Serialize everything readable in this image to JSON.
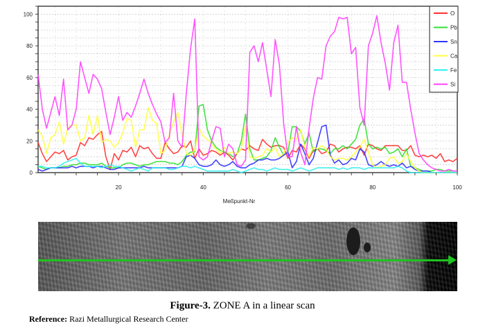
{
  "chart_data": {
    "type": "line",
    "title": "",
    "xlabel": "Meßpunkt-Nr",
    "ylabel": "",
    "xlim": [
      1,
      100
    ],
    "ylim": [
      0,
      105
    ],
    "xticks": [
      20,
      40,
      60,
      80,
      100
    ],
    "yticks": [
      0,
      20,
      40,
      60,
      80,
      100
    ],
    "grid": true,
    "legend_position": "top-right",
    "x_start": 1,
    "series": [
      {
        "name": "O",
        "color": "#ff3030",
        "values": [
          19,
          12,
          7,
          10,
          13,
          12,
          14,
          8,
          10,
          11,
          19,
          17,
          22,
          21,
          24,
          26,
          10,
          2,
          12,
          8,
          14,
          13,
          16,
          10,
          17,
          15,
          16,
          12,
          9,
          9,
          19,
          15,
          12,
          13,
          17,
          16,
          20,
          9,
          15,
          11,
          12,
          14,
          13,
          11,
          13,
          11,
          8,
          12,
          15,
          14,
          17,
          15,
          14,
          21,
          18,
          16,
          17,
          17,
          16,
          9,
          14,
          13,
          18,
          15,
          9,
          14,
          15,
          12,
          13,
          18,
          17,
          13,
          15,
          16,
          16,
          15,
          17,
          11,
          18,
          17,
          15,
          14,
          17,
          17,
          17,
          17,
          14,
          14,
          17,
          11,
          10,
          11,
          10,
          11,
          9,
          12,
          7,
          8,
          7,
          9
        ]
      },
      {
        "name": "Pb",
        "color": "#30e030",
        "values": [
          4,
          3,
          2,
          3,
          3,
          3,
          4,
          4,
          5,
          5,
          6,
          6,
          5,
          5,
          5,
          6,
          4,
          3,
          3,
          3,
          5,
          6,
          6,
          5,
          4,
          5,
          5,
          6,
          7,
          7,
          7,
          6,
          6,
          5,
          7,
          11,
          13,
          13,
          42,
          43,
          27,
          20,
          16,
          14,
          13,
          12,
          10,
          12,
          20,
          37,
          15,
          8,
          8,
          9,
          10,
          14,
          22,
          16,
          11,
          13,
          29,
          29,
          26,
          18,
          25,
          13,
          15,
          15,
          14,
          12,
          15,
          15,
          17,
          15,
          18,
          21,
          30,
          34,
          18,
          15,
          16,
          15,
          16,
          12,
          13,
          15,
          10,
          15,
          4,
          3,
          2,
          1,
          1,
          1,
          2,
          2,
          1,
          1,
          1,
          1
        ]
      },
      {
        "name": "Sn",
        "color": "#3030ff",
        "values": [
          2,
          1,
          2,
          3,
          3,
          3,
          3,
          3,
          4,
          3,
          4,
          4,
          4,
          3,
          4,
          4,
          3,
          2,
          2,
          3,
          3,
          3,
          3,
          3,
          3,
          4,
          3,
          3,
          3,
          3,
          3,
          3,
          3,
          3,
          4,
          10,
          11,
          9,
          5,
          4,
          4,
          5,
          8,
          5,
          4,
          5,
          7,
          4,
          3,
          3,
          5,
          6,
          8,
          8,
          9,
          8,
          8,
          9,
          11,
          13,
          3,
          7,
          18,
          12,
          5,
          9,
          19,
          29,
          30,
          11,
          6,
          8,
          5,
          6,
          9,
          8,
          15,
          13,
          5,
          4,
          5,
          7,
          5,
          4,
          5,
          4,
          6,
          3,
          4,
          2,
          1,
          1,
          1,
          0,
          0,
          0,
          0,
          0,
          0,
          0
        ]
      },
      {
        "name": "Ca",
        "color": "#ffff40",
        "values": [
          27,
          23,
          12,
          22,
          24,
          32,
          18,
          28,
          30,
          30,
          20,
          22,
          36,
          24,
          36,
          19,
          21,
          20,
          16,
          19,
          25,
          34,
          33,
          16,
          27,
          27,
          41,
          33,
          31,
          12,
          14,
          24,
          32,
          38,
          24,
          12,
          11,
          14,
          28,
          23,
          21,
          18,
          15,
          12,
          16,
          12,
          13,
          12,
          15,
          30,
          10,
          9,
          10,
          11,
          15,
          13,
          16,
          10,
          12,
          19,
          22,
          21,
          27,
          16,
          10,
          16,
          15,
          17,
          15,
          10,
          8,
          9,
          9,
          8,
          10,
          13,
          16,
          21,
          13,
          5,
          3,
          4,
          5,
          9,
          10,
          6,
          7,
          12,
          7,
          3,
          1,
          0,
          0,
          0,
          0,
          0,
          0,
          0,
          0,
          0
        ]
      },
      {
        "name": "Fe",
        "color": "#30f0f0",
        "values": [
          4,
          4,
          3,
          3,
          3,
          4,
          6,
          7,
          8,
          9,
          6,
          4,
          4,
          4,
          4,
          3,
          4,
          5,
          4,
          4,
          3,
          2,
          1,
          2,
          3,
          2,
          1,
          3,
          3,
          3,
          3,
          2,
          2,
          3,
          4,
          4,
          3,
          4,
          3,
          2,
          1,
          1,
          1,
          1,
          1,
          1,
          2,
          1,
          0,
          1,
          2,
          3,
          2,
          2,
          1,
          2,
          3,
          2,
          2,
          2,
          1,
          2,
          3,
          2,
          1,
          2,
          3,
          3,
          3,
          3,
          3,
          2,
          3,
          2,
          3,
          3,
          3,
          2,
          3,
          3,
          3,
          3,
          3,
          3,
          3,
          4,
          3,
          1,
          0,
          0,
          0,
          0,
          0,
          0,
          0,
          0,
          0,
          0,
          0,
          0
        ]
      },
      {
        "name": "Si",
        "color": "#ff40ff",
        "values": [
          62,
          40,
          28,
          38,
          48,
          36,
          59,
          27,
          30,
          40,
          70,
          60,
          50,
          62,
          59,
          53,
          38,
          24,
          35,
          48,
          33,
          38,
          35,
          42,
          50,
          59,
          50,
          43,
          37,
          32,
          19,
          22,
          50,
          20,
          16,
          50,
          78,
          97,
          10,
          8,
          10,
          20,
          29,
          28,
          10,
          18,
          15,
          5,
          4,
          8,
          76,
          80,
          70,
          82,
          65,
          48,
          84,
          68,
          31,
          10,
          10,
          29,
          13,
          5,
          28,
          47,
          60,
          59,
          80,
          86,
          89,
          98,
          97,
          98,
          75,
          79,
          41,
          30,
          80,
          88,
          99,
          82,
          69,
          52,
          82,
          93,
          57,
          57,
          40,
          25,
          12,
          8,
          5,
          3,
          2,
          1,
          1,
          2,
          1,
          1
        ]
      }
    ]
  },
  "image": {
    "caption_label": "Figure-3.",
    "caption_text": " ZONE A in a linear scan"
  },
  "reference": {
    "label": "Reference:",
    "text": " Razi Metallurgical Research Center"
  }
}
